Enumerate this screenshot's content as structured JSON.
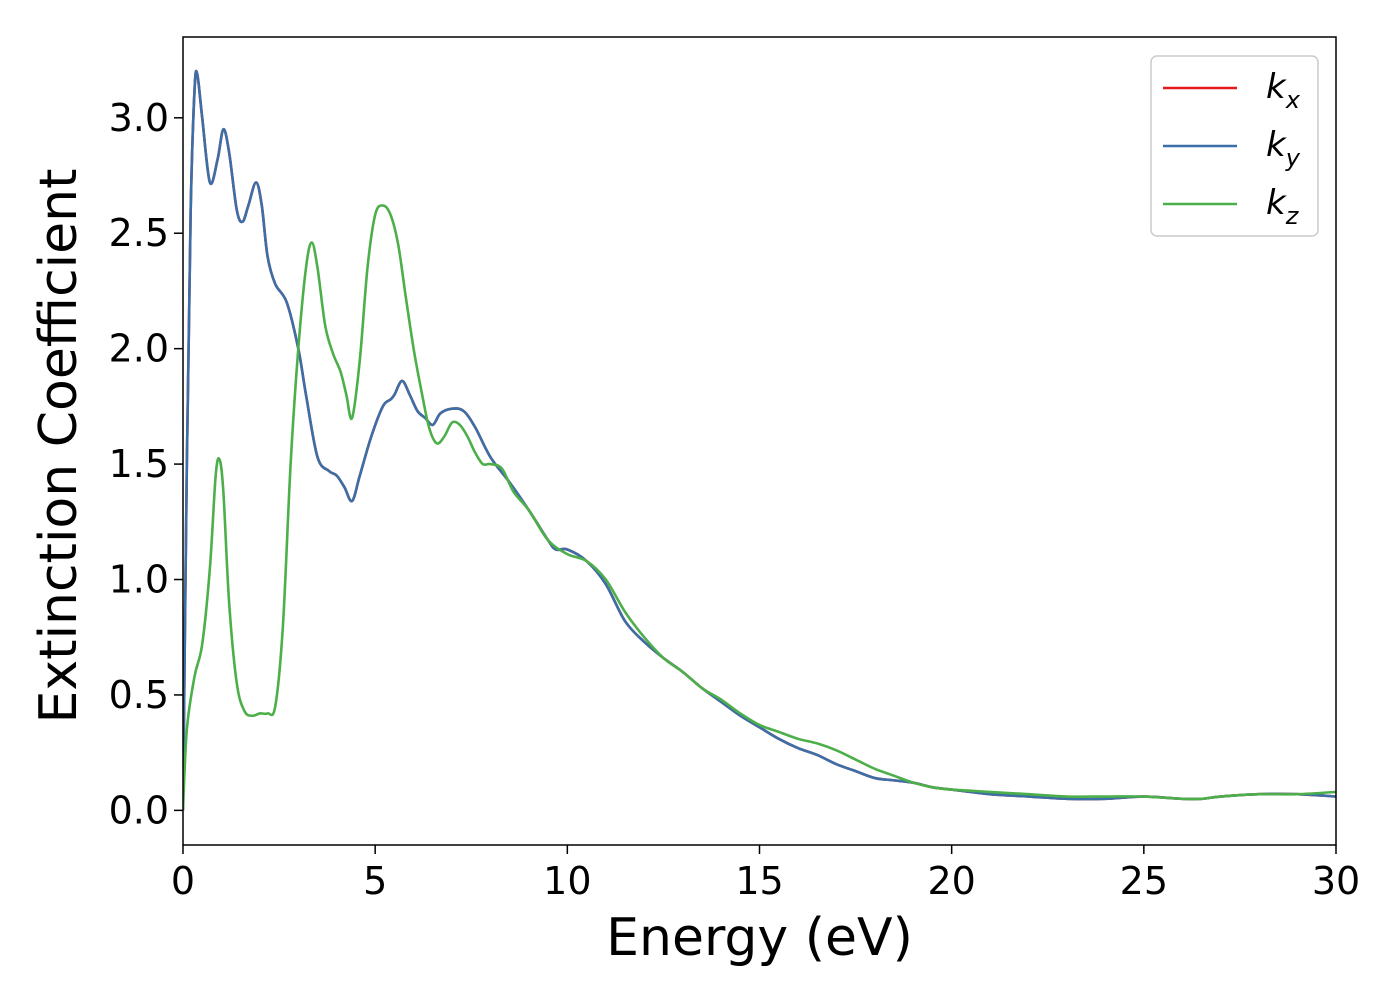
{
  "chart_data": {
    "type": "line",
    "title": "",
    "xlabel": "Energy (eV)",
    "ylabel": "Extinction Coefficient",
    "xlim": [
      0,
      30
    ],
    "ylim": [
      -0.15,
      3.35
    ],
    "xticks": [
      0,
      5,
      10,
      15,
      20,
      25,
      30
    ],
    "xtick_labels": [
      "0",
      "5",
      "10",
      "15",
      "20",
      "25",
      "30"
    ],
    "yticks": [
      0.0,
      0.5,
      1.0,
      1.5,
      2.0,
      2.5,
      3.0
    ],
    "ytick_labels": [
      "0.0",
      "0.5",
      "1.0",
      "1.5",
      "2.0",
      "2.5",
      "3.0"
    ],
    "grid": false,
    "legend": {
      "position": "top-right",
      "entries": [
        {
          "base": "k",
          "sub": "x"
        },
        {
          "base": "k",
          "sub": "y"
        },
        {
          "base": "k",
          "sub": "z"
        }
      ]
    },
    "series": [
      {
        "name": "kx",
        "color": "#e41a1c",
        "x": [
          0,
          0.1,
          0.2,
          0.3,
          0.37,
          0.5,
          0.7,
          0.9,
          1.05,
          1.2,
          1.4,
          1.55,
          1.7,
          1.9,
          2.05,
          2.2,
          2.4,
          2.7,
          3.0,
          3.2,
          3.5,
          3.8,
          4.0,
          4.2,
          4.4,
          4.6,
          4.9,
          5.2,
          5.4,
          5.5,
          5.7,
          5.9,
          6.1,
          6.3,
          6.5,
          6.7,
          7.0,
          7.3,
          7.6,
          8.0,
          8.5,
          9.0,
          9.5,
          9.7,
          10.0,
          10.5,
          11.0,
          11.5,
          12.0,
          12.5,
          13.0,
          13.5,
          14.0,
          14.5,
          15.0,
          15.5,
          16.0,
          16.5,
          17.0,
          17.5,
          18.0,
          18.5,
          19.0,
          19.5,
          20.0,
          21.0,
          22.0,
          23.0,
          24.0,
          25.0,
          26.0,
          26.5,
          27.0,
          28.0,
          29.0,
          30.0
        ],
        "y": [
          0.0,
          1.5,
          2.6,
          3.12,
          3.19,
          3.0,
          2.72,
          2.82,
          2.95,
          2.85,
          2.6,
          2.55,
          2.62,
          2.72,
          2.62,
          2.4,
          2.28,
          2.2,
          2.0,
          1.8,
          1.53,
          1.47,
          1.45,
          1.4,
          1.34,
          1.45,
          1.62,
          1.75,
          1.78,
          1.8,
          1.86,
          1.8,
          1.73,
          1.7,
          1.67,
          1.72,
          1.74,
          1.73,
          1.66,
          1.53,
          1.42,
          1.3,
          1.17,
          1.13,
          1.13,
          1.08,
          0.98,
          0.82,
          0.73,
          0.66,
          0.6,
          0.53,
          0.47,
          0.41,
          0.36,
          0.31,
          0.27,
          0.24,
          0.2,
          0.17,
          0.14,
          0.13,
          0.12,
          0.1,
          0.09,
          0.07,
          0.06,
          0.05,
          0.05,
          0.06,
          0.05,
          0.05,
          0.06,
          0.07,
          0.07,
          0.06
        ]
      },
      {
        "name": "ky",
        "color": "#3a6fa7",
        "x": [
          0,
          0.1,
          0.2,
          0.3,
          0.37,
          0.5,
          0.7,
          0.9,
          1.05,
          1.2,
          1.4,
          1.55,
          1.7,
          1.9,
          2.05,
          2.2,
          2.4,
          2.7,
          3.0,
          3.2,
          3.5,
          3.8,
          4.0,
          4.2,
          4.4,
          4.6,
          4.9,
          5.2,
          5.4,
          5.5,
          5.7,
          5.9,
          6.1,
          6.3,
          6.5,
          6.7,
          7.0,
          7.3,
          7.6,
          8.0,
          8.5,
          9.0,
          9.5,
          9.7,
          10.0,
          10.5,
          11.0,
          11.5,
          12.0,
          12.5,
          13.0,
          13.5,
          14.0,
          14.5,
          15.0,
          15.5,
          16.0,
          16.5,
          17.0,
          17.5,
          18.0,
          18.5,
          19.0,
          19.5,
          20.0,
          21.0,
          22.0,
          23.0,
          24.0,
          25.0,
          26.0,
          26.5,
          27.0,
          28.0,
          29.0,
          30.0
        ],
        "y": [
          0.0,
          1.5,
          2.6,
          3.12,
          3.19,
          3.0,
          2.72,
          2.82,
          2.95,
          2.85,
          2.6,
          2.55,
          2.62,
          2.72,
          2.62,
          2.4,
          2.28,
          2.2,
          2.0,
          1.8,
          1.53,
          1.47,
          1.45,
          1.4,
          1.34,
          1.45,
          1.62,
          1.75,
          1.78,
          1.8,
          1.86,
          1.8,
          1.73,
          1.7,
          1.67,
          1.72,
          1.74,
          1.73,
          1.66,
          1.53,
          1.42,
          1.3,
          1.17,
          1.13,
          1.13,
          1.08,
          0.98,
          0.82,
          0.73,
          0.66,
          0.6,
          0.53,
          0.47,
          0.41,
          0.36,
          0.31,
          0.27,
          0.24,
          0.2,
          0.17,
          0.14,
          0.13,
          0.12,
          0.1,
          0.09,
          0.07,
          0.06,
          0.05,
          0.05,
          0.06,
          0.05,
          0.05,
          0.06,
          0.07,
          0.07,
          0.06
        ]
      },
      {
        "name": "kz",
        "color": "#4daf4a",
        "x": [
          0,
          0.1,
          0.3,
          0.5,
          0.7,
          0.85,
          0.95,
          1.05,
          1.2,
          1.4,
          1.6,
          1.8,
          2.0,
          2.2,
          2.4,
          2.6,
          2.8,
          3.0,
          3.2,
          3.35,
          3.5,
          3.7,
          3.9,
          4.1,
          4.25,
          4.4,
          4.6,
          4.8,
          5.0,
          5.2,
          5.4,
          5.6,
          5.8,
          6.0,
          6.2,
          6.4,
          6.6,
          6.8,
          7.0,
          7.2,
          7.4,
          7.6,
          7.8,
          8.0,
          8.3,
          8.6,
          9.0,
          9.5,
          10.0,
          10.5,
          11.0,
          11.5,
          12.0,
          12.5,
          13.0,
          13.5,
          14.0,
          14.5,
          15.0,
          15.5,
          16.0,
          16.5,
          17.0,
          17.5,
          18.0,
          18.5,
          19.0,
          19.5,
          20.0,
          21.0,
          22.0,
          23.0,
          24.0,
          25.0,
          26.0,
          26.5,
          27.0,
          28.0,
          29.0,
          30.0
        ],
        "y": [
          0.0,
          0.35,
          0.58,
          0.72,
          1.05,
          1.45,
          1.52,
          1.38,
          0.9,
          0.55,
          0.43,
          0.41,
          0.42,
          0.42,
          0.45,
          0.8,
          1.5,
          2.0,
          2.35,
          2.46,
          2.35,
          2.1,
          1.98,
          1.9,
          1.8,
          1.7,
          1.95,
          2.35,
          2.58,
          2.62,
          2.58,
          2.45,
          2.22,
          2.0,
          1.82,
          1.66,
          1.59,
          1.62,
          1.68,
          1.67,
          1.62,
          1.55,
          1.5,
          1.5,
          1.48,
          1.38,
          1.3,
          1.17,
          1.11,
          1.08,
          1.0,
          0.86,
          0.75,
          0.66,
          0.6,
          0.53,
          0.48,
          0.42,
          0.37,
          0.34,
          0.31,
          0.29,
          0.26,
          0.22,
          0.18,
          0.15,
          0.12,
          0.1,
          0.09,
          0.08,
          0.07,
          0.06,
          0.06,
          0.06,
          0.05,
          0.05,
          0.06,
          0.07,
          0.07,
          0.08
        ]
      }
    ]
  }
}
